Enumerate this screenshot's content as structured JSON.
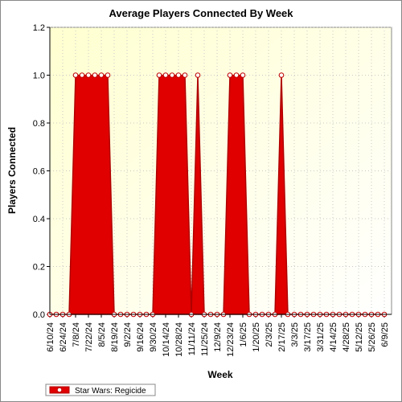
{
  "chart_data": {
    "type": "area",
    "title": "Average Players Connected By Week",
    "x_label": "Week",
    "y_label": "Players Connected",
    "categories": [
      "6/10/24",
      null,
      "6/24/24",
      null,
      "7/8/24",
      null,
      "7/22/24",
      null,
      "8/5/24",
      null,
      "8/19/24",
      null,
      "9/2/24",
      null,
      "9/16/24",
      null,
      "9/30/24",
      null,
      "10/14/24",
      null,
      "10/28/24",
      null,
      "11/11/24",
      null,
      "11/25/24",
      null,
      "12/9/24",
      null,
      "12/23/24",
      null,
      "1/6/25",
      null,
      "1/20/25",
      null,
      "2/3/25",
      null,
      "2/17/25",
      null,
      "3/3/25",
      null,
      "3/17/25",
      null,
      "3/31/25",
      null,
      "4/14/25",
      null,
      "4/28/25",
      null,
      "5/12/25",
      null,
      "5/26/25",
      null,
      "6/9/25"
    ],
    "series": [
      {
        "name": "Star Wars: Regicide",
        "color": "#e00000",
        "values": [
          0,
          0,
          0,
          0,
          1,
          1,
          1,
          1,
          1,
          1,
          0,
          0,
          0,
          0,
          0,
          0,
          0,
          1,
          1,
          1,
          1,
          1,
          0,
          1,
          0,
          0,
          0,
          0,
          1,
          1,
          1,
          0,
          0,
          0,
          0,
          0,
          1,
          0,
          0,
          0,
          0,
          0,
          0,
          0,
          0,
          0,
          0,
          0,
          0,
          0,
          0,
          0,
          0
        ]
      }
    ],
    "ylim": [
      0,
      1.2
    ],
    "yticks": [
      {
        "value": 0,
        "label": "0.0"
      },
      {
        "value": 0.2,
        "label": "0.2"
      },
      {
        "value": 0.4,
        "label": "0.4"
      },
      {
        "value": 0.6,
        "label": "0.6"
      },
      {
        "value": 0.8,
        "label": "0.8"
      },
      {
        "value": 1,
        "label": "1.0"
      },
      {
        "value": 1.2,
        "label": "1.2"
      }
    ],
    "grid": true,
    "legend": "bottom-left"
  }
}
